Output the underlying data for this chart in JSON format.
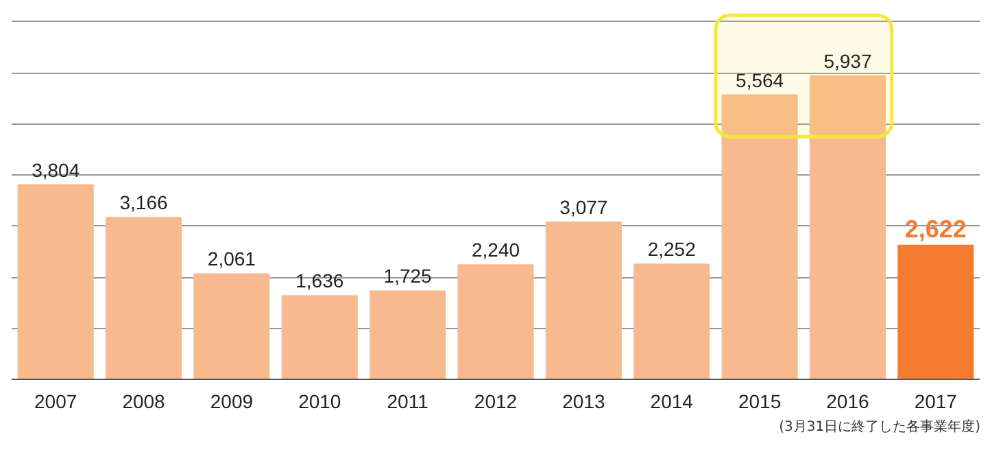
{
  "chart_data": {
    "type": "bar",
    "categories": [
      "2007",
      "2008",
      "2009",
      "2010",
      "2011",
      "2012",
      "2013",
      "2014",
      "2015",
      "2016",
      "2017"
    ],
    "values": [
      3804,
      3166,
      2061,
      1636,
      1725,
      2240,
      3077,
      2252,
      5564,
      5937,
      2622
    ],
    "colors": [
      "#f9b98f",
      "#f9b98f",
      "#f9b98f",
      "#f9b98f",
      "#f9b98f",
      "#f9b98f",
      "#f9b98f",
      "#f9b98f",
      "#f9b98f",
      "#f9b98f",
      "#f47c30"
    ],
    "value_labels": [
      "3,804",
      "3,166",
      "2,061",
      "1,636",
      "1,725",
      "2,240",
      "3,077",
      "2,252",
      "5,564",
      "5,937",
      "2,622"
    ],
    "grid": "y",
    "tick_labels": "x",
    "bands": [
      {
        "axis": "x",
        "from": "2015",
        "to": "2016",
        "color": "#f5e83a"
      }
    ],
    "annotations": [
      "(3月31日に終了した各事業年度)"
    ]
  }
}
